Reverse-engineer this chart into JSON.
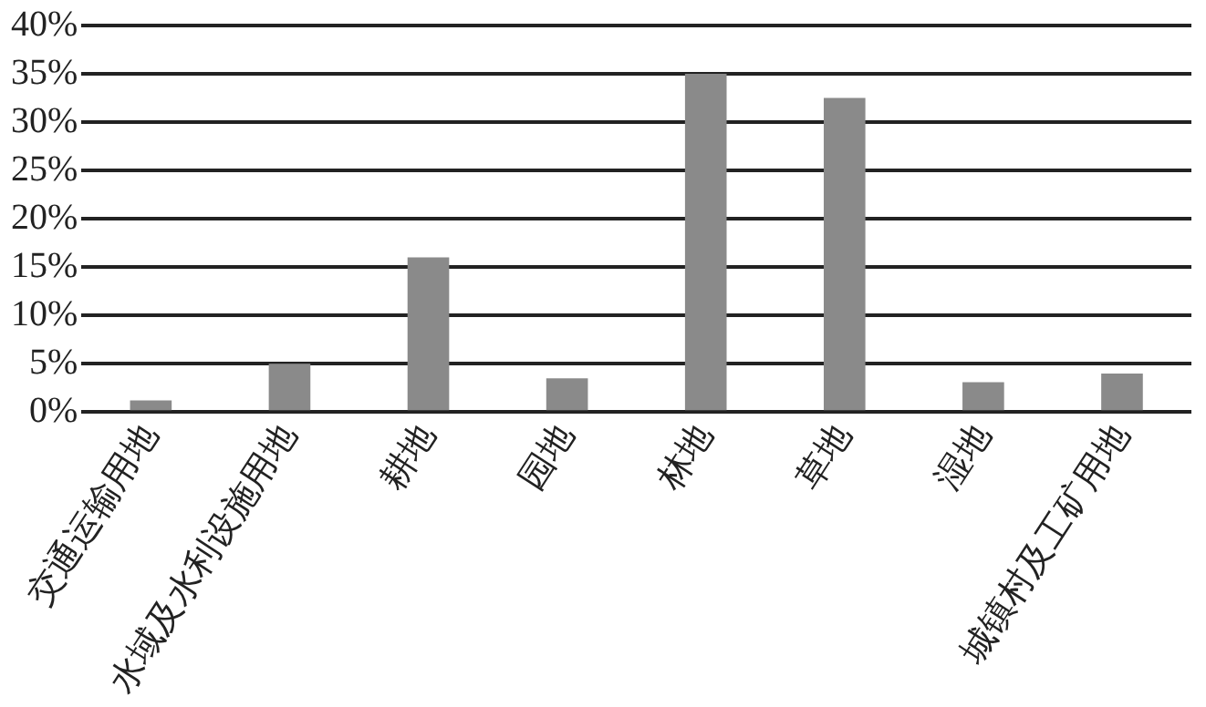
{
  "chart_data": {
    "type": "bar",
    "categories": [
      "交通运输用地",
      "水域及水利设施用地",
      "耕地",
      "园地",
      "林地",
      "草地",
      "湿地",
      "城镇村及工矿用地"
    ],
    "values": [
      1.2,
      5,
      16,
      3.5,
      35,
      32.5,
      3.1,
      4
    ],
    "color": "#8a8a8a",
    "ylim": [
      0,
      40
    ],
    "yticks": [
      {
        "value": 0,
        "label": "0%"
      },
      {
        "value": 5,
        "label": "5%"
      },
      {
        "value": 10,
        "label": "10%"
      },
      {
        "value": 15,
        "label": "15%"
      },
      {
        "value": 20,
        "label": "20%"
      },
      {
        "value": 25,
        "label": "25%"
      },
      {
        "value": 30,
        "label": "30%"
      },
      {
        "value": 35,
        "label": "35%"
      },
      {
        "value": 40,
        "label": "40%"
      }
    ],
    "grid": "y",
    "legend": false
  }
}
